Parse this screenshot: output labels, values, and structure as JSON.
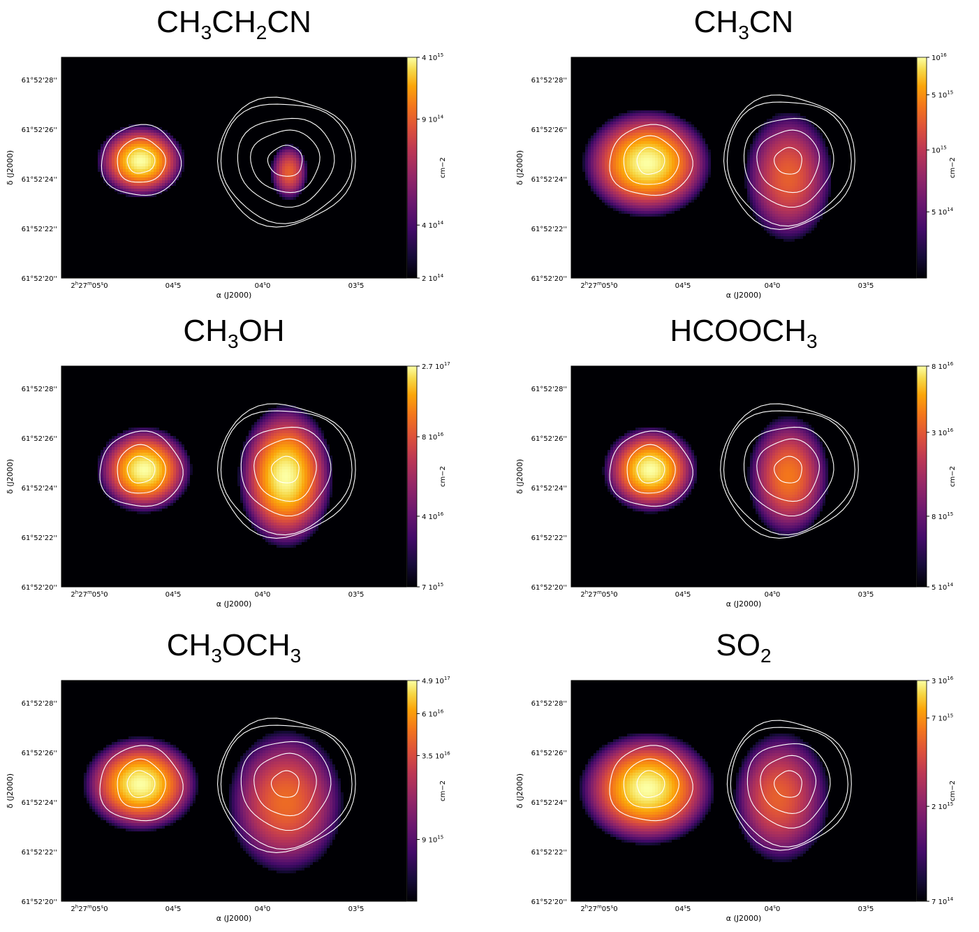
{
  "chart_data": [
    {
      "type": "heatmap",
      "title_parts": [
        {
          "t": "CH"
        },
        {
          "t": "3",
          "sub": true
        },
        {
          "t": "CH"
        },
        {
          "t": "2",
          "sub": true
        },
        {
          "t": "CN"
        }
      ],
      "xlabel": "α (J2000)",
      "ylabel": "δ (J2000)",
      "colorbar_label": "cm−2",
      "x_tick_labels": [
        {
          "h": "2",
          "m": "27",
          "s": "05",
          "f": "0"
        },
        {
          "s": "04",
          "f": "5"
        },
        {
          "s": "04",
          "f": "0"
        },
        {
          "s": "03",
          "f": "5"
        }
      ],
      "y_tick_labels": [
        "61°52'20''",
        "61°52'22''",
        "61°52'24''",
        "61°52'26''",
        "61°52'28''"
      ],
      "colorbar_ticks": [
        {
          "label": "4 10",
          "exp": "15",
          "frac": 1.0
        },
        {
          "label": "9 10",
          "exp": "14",
          "frac": 0.72
        },
        {
          "label": "4 10",
          "exp": "14",
          "frac": 0.24
        },
        {
          "label": "2 10",
          "exp": "14",
          "frac": 0.0
        }
      ],
      "blobs": [
        {
          "cx": 0.23,
          "cy": 0.47,
          "rx": 0.13,
          "ry": 0.17,
          "peak": 1.0,
          "skew": 0.0
        },
        {
          "cx": 0.66,
          "cy": 0.52,
          "rx": 0.055,
          "ry": 0.13,
          "peak": 0.72,
          "skew": 0.0
        }
      ],
      "contours": [
        {
          "cx": 0.23,
          "cy": 0.47,
          "rings": [
            [
              0.115,
              0.16
            ],
            [
              0.07,
              0.1
            ],
            [
              0.04,
              0.055
            ]
          ]
        },
        {
          "cx": 0.65,
          "cy": 0.47,
          "rings": [
            [
              0.2,
              0.29
            ],
            [
              0.19,
              0.27
            ],
            [
              0.14,
              0.2
            ],
            [
              0.1,
              0.14
            ],
            [
              0.05,
              0.07
            ]
          ]
        }
      ]
    },
    {
      "type": "heatmap",
      "title_parts": [
        {
          "t": "CH"
        },
        {
          "t": "3",
          "sub": true
        },
        {
          "t": "CN"
        }
      ],
      "xlabel": "α (J2000)",
      "ylabel": "δ (J2000)",
      "colorbar_label": "cm−2",
      "x_tick_labels": [
        {
          "h": "2",
          "m": "27",
          "s": "05",
          "f": "0"
        },
        {
          "s": "04",
          "f": "5"
        },
        {
          "s": "04",
          "f": "0"
        },
        {
          "s": "03",
          "f": "5"
        }
      ],
      "y_tick_labels": [
        "61°52'20''",
        "61°52'22''",
        "61°52'24''",
        "61°52'26''",
        "61°52'28''"
      ],
      "colorbar_ticks": [
        {
          "label": "10",
          "exp": "16",
          "frac": 1.0
        },
        {
          "label": "5 10",
          "exp": "15",
          "frac": 0.83
        },
        {
          "label": "10",
          "exp": "15",
          "frac": 0.58
        },
        {
          "label": "5 10",
          "exp": "14",
          "frac": 0.3
        }
      ],
      "blobs": [
        {
          "cx": 0.22,
          "cy": 0.48,
          "rx": 0.19,
          "ry": 0.25,
          "peak": 1.0,
          "skew": 0.0
        },
        {
          "cx": 0.63,
          "cy": 0.54,
          "rx": 0.13,
          "ry": 0.3,
          "peak": 0.72,
          "skew": 0.0
        }
      ],
      "contours": [
        {
          "cx": 0.23,
          "cy": 0.47,
          "rings": [
            [
              0.12,
              0.16
            ],
            [
              0.08,
              0.11
            ],
            [
              0.04,
              0.06
            ]
          ]
        },
        {
          "cx": 0.63,
          "cy": 0.47,
          "rings": [
            [
              0.19,
              0.3
            ],
            [
              0.18,
              0.28
            ],
            [
              0.13,
              0.2
            ],
            [
              0.09,
              0.14
            ],
            [
              0.04,
              0.06
            ]
          ]
        }
      ]
    },
    {
      "type": "heatmap",
      "title_parts": [
        {
          "t": "CH"
        },
        {
          "t": "3",
          "sub": true
        },
        {
          "t": "OH"
        }
      ],
      "xlabel": "α (J2000)",
      "ylabel": "δ (J2000)",
      "colorbar_label": "cm−2",
      "x_tick_labels": [
        {
          "h": "2",
          "m": "27",
          "s": "05",
          "f": "0"
        },
        {
          "s": "04",
          "f": "5"
        },
        {
          "s": "04",
          "f": "0"
        },
        {
          "s": "03",
          "f": "5"
        }
      ],
      "y_tick_labels": [
        "61°52'20''",
        "61°52'22''",
        "61°52'24''",
        "61°52'26''",
        "61°52'28''"
      ],
      "colorbar_ticks": [
        {
          "label": "2.7 10",
          "exp": "17",
          "frac": 1.0
        },
        {
          "label": "8 10",
          "exp": "16",
          "frac": 0.68
        },
        {
          "label": "4 10",
          "exp": "16",
          "frac": 0.32
        },
        {
          "label": "7 10",
          "exp": "15",
          "frac": 0.0
        }
      ],
      "blobs": [
        {
          "cx": 0.24,
          "cy": 0.47,
          "rx": 0.14,
          "ry": 0.2,
          "peak": 1.0,
          "skew": 0.0
        },
        {
          "cx": 0.65,
          "cy": 0.5,
          "rx": 0.14,
          "ry": 0.33,
          "peak": 1.0,
          "skew": 0.0
        }
      ],
      "contours": [
        {
          "cx": 0.23,
          "cy": 0.47,
          "rings": [
            [
              0.12,
              0.17
            ],
            [
              0.07,
              0.11
            ],
            [
              0.04,
              0.06
            ]
          ]
        },
        {
          "cx": 0.65,
          "cy": 0.47,
          "rings": [
            [
              0.2,
              0.3
            ],
            [
              0.19,
              0.28
            ],
            [
              0.13,
              0.2
            ],
            [
              0.09,
              0.14
            ],
            [
              0.04,
              0.06
            ]
          ]
        }
      ]
    },
    {
      "type": "heatmap",
      "title_parts": [
        {
          "t": "HCOOCH"
        },
        {
          "t": "3",
          "sub": true
        }
      ],
      "xlabel": "α (J2000)",
      "ylabel": "δ (J2000)",
      "colorbar_label": "cm−2",
      "x_tick_labels": [
        {
          "h": "2",
          "m": "27",
          "s": "05",
          "f": "0"
        },
        {
          "s": "04",
          "f": "5"
        },
        {
          "s": "04",
          "f": "0"
        },
        {
          "s": "03",
          "f": "5"
        }
      ],
      "y_tick_labels": [
        "61°52'20''",
        "61°52'22''",
        "61°52'24''",
        "61°52'26''",
        "61°52'28''"
      ],
      "colorbar_ticks": [
        {
          "label": "8 10",
          "exp": "16",
          "frac": 1.0
        },
        {
          "label": "3 10",
          "exp": "16",
          "frac": 0.7
        },
        {
          "label": "8 10",
          "exp": "15",
          "frac": 0.32
        },
        {
          "label": "5 10",
          "exp": "14",
          "frac": 0.0
        }
      ],
      "blobs": [
        {
          "cx": 0.23,
          "cy": 0.47,
          "rx": 0.14,
          "ry": 0.2,
          "peak": 1.0,
          "skew": 0.0
        },
        {
          "cx": 0.63,
          "cy": 0.5,
          "rx": 0.12,
          "ry": 0.28,
          "peak": 0.78,
          "skew": 0.0
        }
      ],
      "contours": [
        {
          "cx": 0.23,
          "cy": 0.47,
          "rings": [
            [
              0.12,
              0.17
            ],
            [
              0.07,
              0.11
            ],
            [
              0.04,
              0.06
            ]
          ]
        },
        {
          "cx": 0.63,
          "cy": 0.47,
          "rings": [
            [
              0.2,
              0.3
            ],
            [
              0.19,
              0.28
            ],
            [
              0.13,
              0.2
            ],
            [
              0.09,
              0.14
            ],
            [
              0.04,
              0.06
            ]
          ]
        }
      ]
    },
    {
      "type": "heatmap",
      "title_parts": [
        {
          "t": "CH"
        },
        {
          "t": "3",
          "sub": true
        },
        {
          "t": "OCH"
        },
        {
          "t": "3",
          "sub": true
        }
      ],
      "xlabel": "α (J2000)",
      "ylabel": "δ (J2000)",
      "colorbar_label": "cm−2",
      "x_tick_labels": [
        {
          "h": "2",
          "m": "27",
          "s": "05",
          "f": "0"
        },
        {
          "s": "04",
          "f": "5"
        },
        {
          "s": "04",
          "f": "0"
        },
        {
          "s": "03",
          "f": "5"
        }
      ],
      "y_tick_labels": [
        "61°52'20''",
        "61°52'22''",
        "61°52'24''",
        "61°52'26''",
        "61°52'28''"
      ],
      "colorbar_ticks": [
        {
          "label": "4.9 10",
          "exp": "17",
          "frac": 1.0
        },
        {
          "label": "6 10",
          "exp": "16",
          "frac": 0.85
        },
        {
          "label": "3.5 10",
          "exp": "16",
          "frac": 0.66
        },
        {
          "label": "9 10",
          "exp": "15",
          "frac": 0.28
        }
      ],
      "blobs": [
        {
          "cx": 0.23,
          "cy": 0.47,
          "rx": 0.17,
          "ry": 0.22,
          "peak": 1.0,
          "skew": 0.0
        },
        {
          "cx": 0.65,
          "cy": 0.55,
          "rx": 0.17,
          "ry": 0.33,
          "peak": 0.75,
          "skew": 0.0
        }
      ],
      "contours": [
        {
          "cx": 0.23,
          "cy": 0.47,
          "rings": [
            [
              0.12,
              0.17
            ],
            [
              0.07,
              0.11
            ],
            [
              0.04,
              0.06
            ]
          ]
        },
        {
          "cx": 0.65,
          "cy": 0.47,
          "rings": [
            [
              0.2,
              0.3
            ],
            [
              0.19,
              0.28
            ],
            [
              0.13,
              0.2
            ],
            [
              0.09,
              0.14
            ],
            [
              0.04,
              0.06
            ]
          ]
        }
      ]
    },
    {
      "type": "heatmap",
      "title_parts": [
        {
          "t": "SO"
        },
        {
          "t": "2",
          "sub": true
        }
      ],
      "xlabel": "α (J2000)",
      "ylabel": "δ (J2000)",
      "colorbar_label": "cm−2",
      "x_tick_labels": [
        {
          "h": "2",
          "m": "27",
          "s": "05",
          "f": "0"
        },
        {
          "s": "04",
          "f": "5"
        },
        {
          "s": "04",
          "f": "0"
        },
        {
          "s": "03",
          "f": "5"
        }
      ],
      "y_tick_labels": [
        "61°52'20''",
        "61°52'22''",
        "61°52'24''",
        "61°52'26''",
        "61°52'28''"
      ],
      "colorbar_ticks": [
        {
          "label": "3 10",
          "exp": "16",
          "frac": 1.0
        },
        {
          "label": "7 10",
          "exp": "15",
          "frac": 0.83
        },
        {
          "label": "2 10",
          "exp": "15",
          "frac": 0.43
        },
        {
          "label": "7 10",
          "exp": "14",
          "frac": 0.0
        }
      ],
      "blobs": [
        {
          "cx": 0.22,
          "cy": 0.49,
          "rx": 0.2,
          "ry": 0.26,
          "peak": 1.0,
          "skew": 0.0
        },
        {
          "cx": 0.6,
          "cy": 0.53,
          "rx": 0.14,
          "ry": 0.3,
          "peak": 0.72,
          "skew": -0.5
        }
      ],
      "contours": [
        {
          "cx": 0.23,
          "cy": 0.47,
          "rings": [
            [
              0.12,
              0.17
            ],
            [
              0.08,
              0.11
            ],
            [
              0.04,
              0.06
            ]
          ]
        },
        {
          "cx": 0.63,
          "cy": 0.47,
          "rings": [
            [
              0.18,
              0.29
            ],
            [
              0.17,
              0.27
            ],
            [
              0.12,
              0.19
            ],
            [
              0.08,
              0.13
            ],
            [
              0.04,
              0.06
            ]
          ]
        }
      ]
    }
  ]
}
